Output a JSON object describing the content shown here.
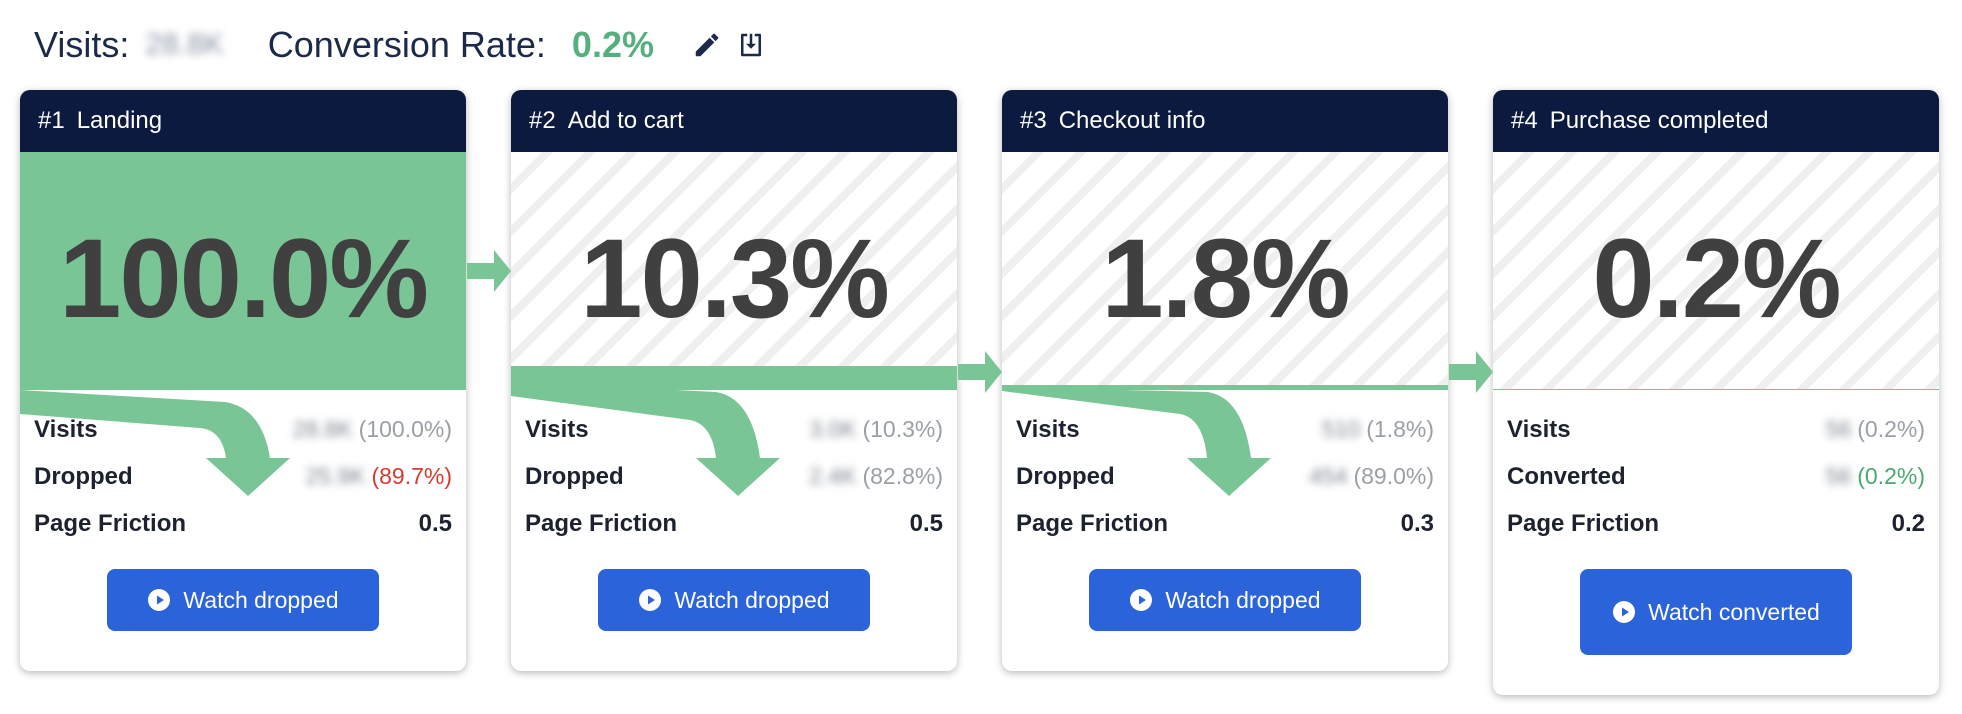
{
  "header": {
    "visits_label": "Visits:",
    "visits_value": "28.8K",
    "rate_label": "Conversion Rate:",
    "rate_value": "0.2%",
    "icons": [
      "pencil-icon",
      "download-icon"
    ]
  },
  "colors": {
    "flow": "#79c596",
    "header": "#0d1a3f",
    "button": "#2b63db",
    "dropped": "#d33c32",
    "converted": "#4aa870",
    "rate": "#55b07e"
  },
  "steps": [
    {
      "num": "#1",
      "name": "Landing",
      "pct": "100.0%",
      "fill": 1.0,
      "visits_label": "Visits",
      "visits_blur": "28.8K",
      "visits_pct": "(100.0%)",
      "second_label": "Dropped",
      "second_blur": "25.9K",
      "second_pct": "(89.7%)",
      "friction_label": "Page Friction",
      "friction": "0.5",
      "button": "Watch dropped"
    },
    {
      "num": "#2",
      "name": "Add to cart",
      "pct": "10.3%",
      "fill": 0.103,
      "visits_label": "Visits",
      "visits_blur": "3.0K",
      "visits_pct": "(10.3%)",
      "second_label": "Dropped",
      "second_blur": "2.4K",
      "second_pct": "(82.8%)",
      "friction_label": "Page Friction",
      "friction": "0.5",
      "button": "Watch dropped"
    },
    {
      "num": "#3",
      "name": "Checkout info",
      "pct": "1.8%",
      "fill": 0.018,
      "visits_label": "Visits",
      "visits_blur": "510",
      "visits_pct": "(1.8%)",
      "second_label": "Dropped",
      "second_blur": "454",
      "second_pct": "(89.0%)",
      "friction_label": "Page Friction",
      "friction": "0.3",
      "button": "Watch dropped"
    },
    {
      "num": "#4",
      "name": "Purchase completed",
      "pct": "0.2%",
      "fill": 0.002,
      "visits_label": "Visits",
      "visits_blur": "56",
      "visits_pct": "(0.2%)",
      "second_label": "Converted",
      "second_blur": "56",
      "second_pct": "(0.2%)",
      "friction_label": "Page Friction",
      "friction": "0.2",
      "button": "Watch converted"
    }
  ]
}
